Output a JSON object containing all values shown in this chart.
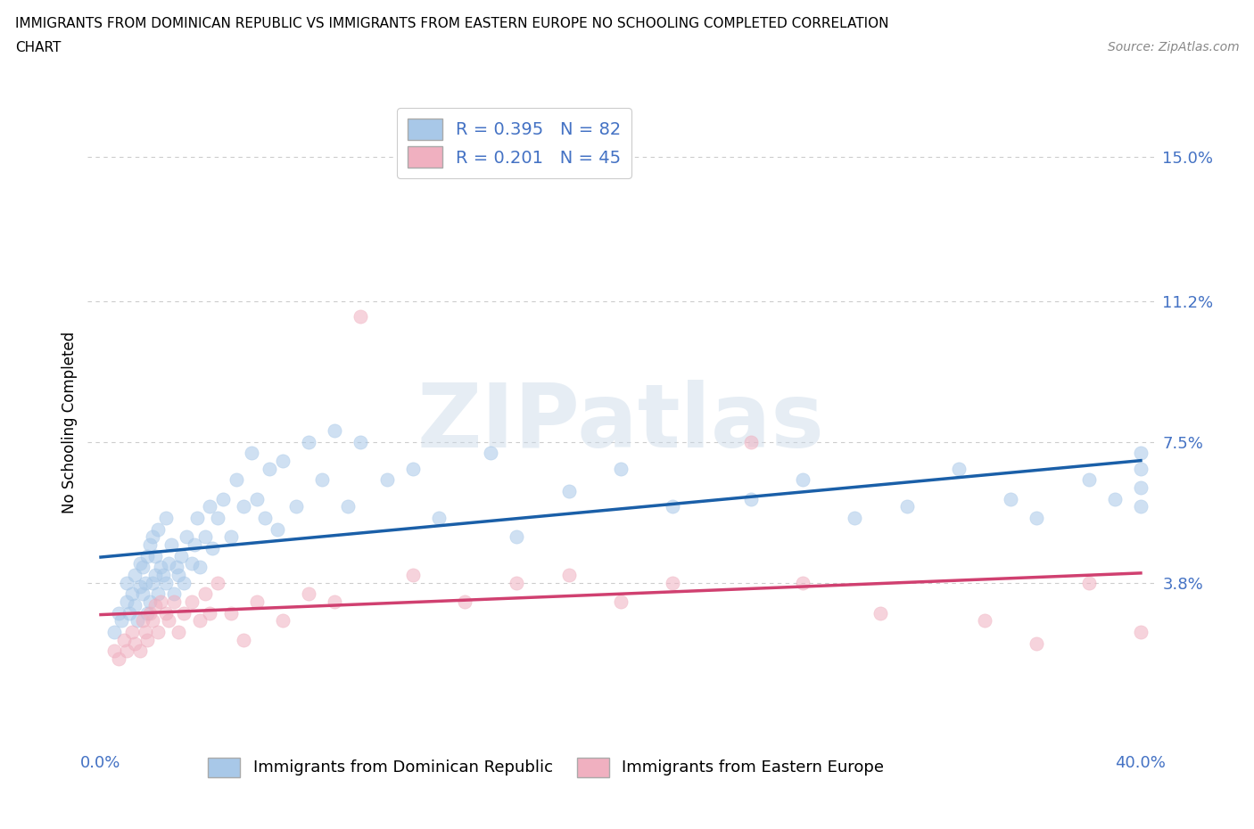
{
  "title_line1": "IMMIGRANTS FROM DOMINICAN REPUBLIC VS IMMIGRANTS FROM EASTERN EUROPE NO SCHOOLING COMPLETED CORRELATION",
  "title_line2": "CHART",
  "source_text": "Source: ZipAtlas.com",
  "ylabel": "No Schooling Completed",
  "xlim": [
    -0.005,
    0.405
  ],
  "ylim": [
    -0.005,
    0.165
  ],
  "yticks": [
    0.038,
    0.075,
    0.112,
    0.15
  ],
  "ytick_labels": [
    "3.8%",
    "7.5%",
    "11.2%",
    "15.0%"
  ],
  "xticks": [
    0.0,
    0.05,
    0.1,
    0.15,
    0.2,
    0.25,
    0.3,
    0.35,
    0.4
  ],
  "xtick_labels": [
    "0.0%",
    "",
    "",
    "",
    "",
    "",
    "",
    "",
    "40.0%"
  ],
  "series1_color": "#a8c8e8",
  "series1_line_color": "#1a5fa8",
  "series2_color": "#f0b0c0",
  "series2_line_color": "#d04070",
  "legend1_label": "Immigrants from Dominican Republic",
  "legend2_label": "Immigrants from Eastern Europe",
  "R1": 0.395,
  "N1": 82,
  "R2": 0.201,
  "N2": 45,
  "watermark": "ZIPatlas",
  "tick_color": "#4472c4",
  "grid_color": "#cccccc",
  "background_color": "#ffffff",
  "series1_x": [
    0.005,
    0.007,
    0.008,
    0.01,
    0.01,
    0.011,
    0.012,
    0.013,
    0.013,
    0.014,
    0.015,
    0.015,
    0.016,
    0.016,
    0.017,
    0.018,
    0.018,
    0.019,
    0.019,
    0.02,
    0.02,
    0.021,
    0.021,
    0.022,
    0.022,
    0.023,
    0.024,
    0.025,
    0.025,
    0.026,
    0.027,
    0.028,
    0.029,
    0.03,
    0.031,
    0.032,
    0.033,
    0.035,
    0.036,
    0.037,
    0.038,
    0.04,
    0.042,
    0.043,
    0.045,
    0.047,
    0.05,
    0.052,
    0.055,
    0.058,
    0.06,
    0.063,
    0.065,
    0.068,
    0.07,
    0.075,
    0.08,
    0.085,
    0.09,
    0.095,
    0.1,
    0.11,
    0.12,
    0.13,
    0.15,
    0.16,
    0.18,
    0.2,
    0.22,
    0.25,
    0.27,
    0.29,
    0.31,
    0.33,
    0.35,
    0.36,
    0.38,
    0.39,
    0.4,
    0.4,
    0.4,
    0.4
  ],
  "series1_y": [
    0.025,
    0.03,
    0.028,
    0.033,
    0.038,
    0.03,
    0.035,
    0.032,
    0.04,
    0.028,
    0.037,
    0.043,
    0.035,
    0.042,
    0.038,
    0.03,
    0.045,
    0.033,
    0.048,
    0.038,
    0.05,
    0.04,
    0.045,
    0.035,
    0.052,
    0.042,
    0.04,
    0.038,
    0.055,
    0.043,
    0.048,
    0.035,
    0.042,
    0.04,
    0.045,
    0.038,
    0.05,
    0.043,
    0.048,
    0.055,
    0.042,
    0.05,
    0.058,
    0.047,
    0.055,
    0.06,
    0.05,
    0.065,
    0.058,
    0.072,
    0.06,
    0.055,
    0.068,
    0.052,
    0.07,
    0.058,
    0.075,
    0.065,
    0.078,
    0.058,
    0.075,
    0.065,
    0.068,
    0.055,
    0.072,
    0.05,
    0.062,
    0.068,
    0.058,
    0.06,
    0.065,
    0.055,
    0.058,
    0.068,
    0.06,
    0.055,
    0.065,
    0.06,
    0.058,
    0.063,
    0.068,
    0.072
  ],
  "series2_x": [
    0.005,
    0.007,
    0.009,
    0.01,
    0.012,
    0.013,
    0.015,
    0.016,
    0.017,
    0.018,
    0.019,
    0.02,
    0.021,
    0.022,
    0.023,
    0.025,
    0.026,
    0.028,
    0.03,
    0.032,
    0.035,
    0.038,
    0.04,
    0.042,
    0.045,
    0.05,
    0.055,
    0.06,
    0.07,
    0.08,
    0.09,
    0.1,
    0.12,
    0.14,
    0.16,
    0.18,
    0.2,
    0.22,
    0.25,
    0.27,
    0.3,
    0.34,
    0.36,
    0.38,
    0.4
  ],
  "series2_y": [
    0.02,
    0.018,
    0.023,
    0.02,
    0.025,
    0.022,
    0.02,
    0.028,
    0.025,
    0.023,
    0.03,
    0.028,
    0.032,
    0.025,
    0.033,
    0.03,
    0.028,
    0.033,
    0.025,
    0.03,
    0.033,
    0.028,
    0.035,
    0.03,
    0.038,
    0.03,
    0.023,
    0.033,
    0.028,
    0.035,
    0.033,
    0.108,
    0.04,
    0.033,
    0.038,
    0.04,
    0.033,
    0.038,
    0.075,
    0.038,
    0.03,
    0.028,
    0.022,
    0.038,
    0.025
  ],
  "dot_size": 120,
  "dot_alpha": 0.55
}
